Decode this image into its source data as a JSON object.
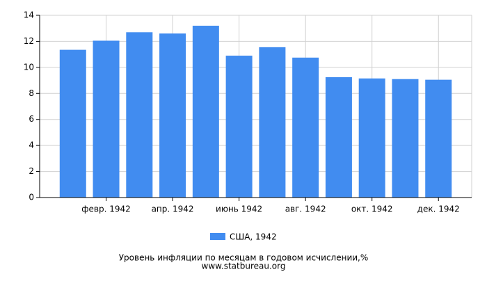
{
  "chart_data": {
    "type": "bar",
    "title": "Уровень инфляции по месяцам в годовом исчислении,%",
    "source": "www.statbureau.org",
    "categories": [
      null,
      "февр. 1942",
      null,
      "апр. 1942",
      null,
      "июнь 1942",
      null,
      "авг. 1942",
      null,
      "окт. 1942",
      null,
      "дек. 1942"
    ],
    "series": [
      {
        "name": "США, 1942",
        "color": "#418cf0",
        "values": [
          11.35,
          12.05,
          12.7,
          12.6,
          13.2,
          10.9,
          11.55,
          10.75,
          9.25,
          9.15,
          9.1,
          9.05
        ]
      }
    ],
    "ylim": [
      0,
      14
    ],
    "yticks": [
      0,
      2,
      4,
      6,
      8,
      10,
      12,
      14
    ],
    "grid": true
  }
}
